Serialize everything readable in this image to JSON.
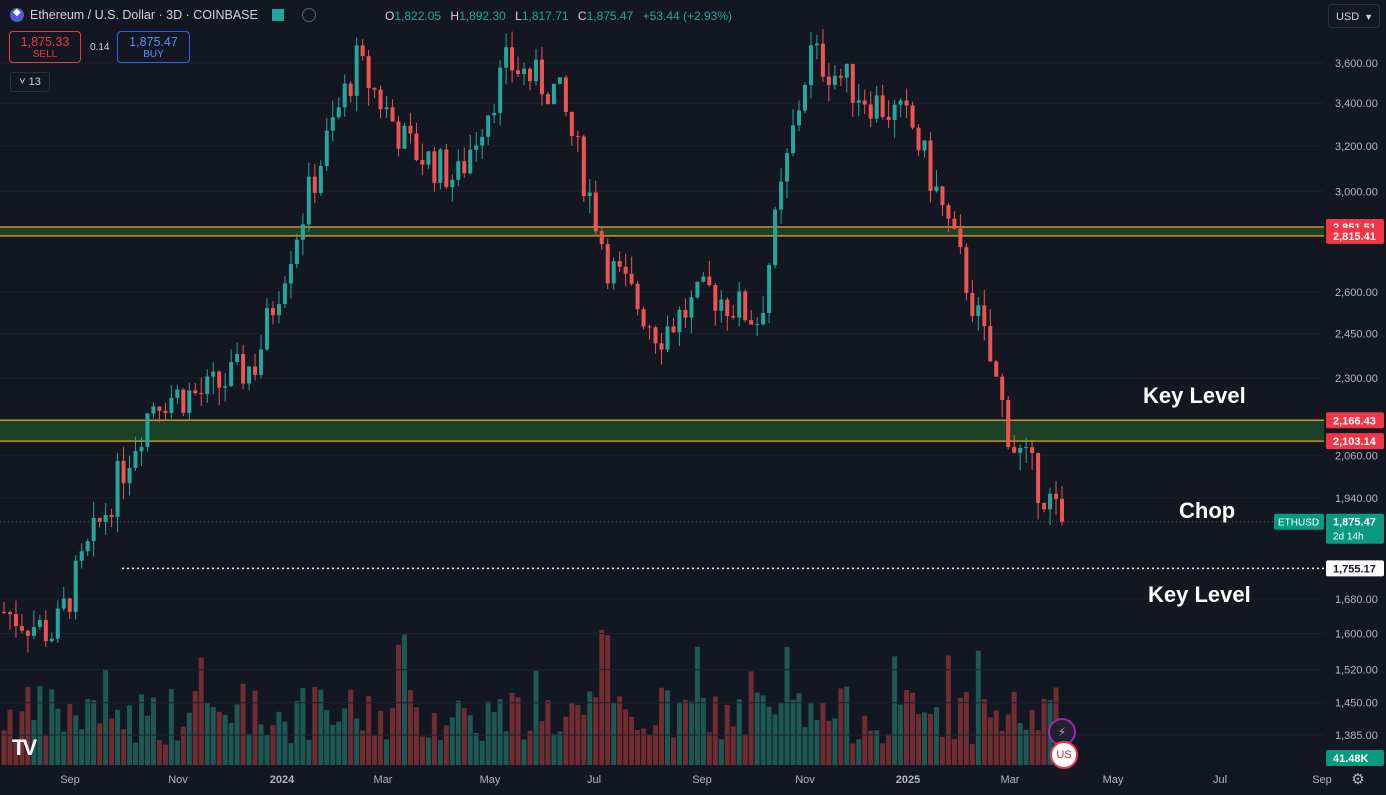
{
  "header": {
    "title": "Ethereum / U.S. Dollar · 3D · COINBASE",
    "ohlc": {
      "o_label": "O",
      "o": "1,822.05",
      "h_label": "H",
      "h": "1,892.30",
      "l_label": "L",
      "l": "1,817.71",
      "c_label": "C",
      "c": "1,875.47",
      "change": "+53.44 (+2.93%)"
    }
  },
  "trade": {
    "sell_price": "1,875.33",
    "sell_label": "SELL",
    "spread": "0.14",
    "buy_price": "1,875.47",
    "buy_label": "BUY"
  },
  "indicator_count": "13",
  "currency": "USD",
  "annotations": {
    "key_level_upper": "Key Level",
    "chop": "Chop",
    "key_level_lower": "Key Level"
  },
  "price_tags": {
    "r1": "2,851.51",
    "r2": "2,815.41",
    "s1": "2,166.43",
    "s2": "2,103.14",
    "symbol": "ETHUSD",
    "last": "1,875.47",
    "countdown": "2d 14h",
    "low_line": "1,755.17",
    "volume": "41.48K"
  },
  "colors": {
    "bg": "#131722",
    "up": "#26a69a",
    "down": "#ef5350",
    "zone_fill": "#1d4a28",
    "zone_line": "#c8922f",
    "tag_red": "#f23645",
    "tag_green": "#089981"
  },
  "icons": [
    "ethereum-logo-icon",
    "flag-icon",
    "eye-icon",
    "gear-icon",
    "tradingview-logo-icon",
    "event-icon",
    "us-flag-icon"
  ],
  "chart_data": {
    "type": "candlestick",
    "title": "Ethereum / U.S. Dollar · 3D · COINBASE",
    "y_axis": {
      "ticks": [
        3600,
        3400,
        3200,
        3000,
        2600,
        2450,
        2300,
        2060,
        1940,
        1680,
        1600,
        1520,
        1450,
        1385
      ],
      "tick_labels": [
        "3,600.00",
        "3,400.00",
        "3,200.00",
        "3,000.00",
        "2,600.00",
        "2,450.00",
        "2,300.00",
        "2,060.00",
        "1,940.00",
        "1,680.00",
        "1,600.00",
        "1,520.00",
        "1,450.00",
        "1,385.00"
      ],
      "scale": "log",
      "range": [
        1340,
        3800
      ]
    },
    "x_axis": {
      "labels": [
        "Sep",
        "Nov",
        "2024",
        "Mar",
        "May",
        "Jul",
        "Sep",
        "Nov",
        "2025",
        "Mar",
        "May",
        "Jul",
        "Sep"
      ]
    },
    "horizontal_levels": [
      2851.51,
      2815.41,
      2166.43,
      2103.14,
      1755.17
    ],
    "zones": [
      {
        "from": 2815.41,
        "to": 2851.51
      },
      {
        "from": 2103.14,
        "to": 2166.43
      }
    ],
    "last_price": 1875.47,
    "anchors": [
      [
        "Sep",
        1650
      ],
      [
        "Oct",
        1600
      ],
      [
        "Nov",
        1900
      ],
      [
        "Dec",
        2240
      ],
      [
        "2024",
        2250
      ],
      [
        "Jan",
        2350
      ],
      [
        "Feb",
        2950
      ],
      [
        "Mar",
        3600
      ],
      [
        "Apr",
        3200
      ],
      [
        "May",
        3050
      ],
      [
        "Jun",
        3600
      ],
      [
        "Jul",
        3450
      ],
      [
        "Aug",
        2700
      ],
      [
        "Sep",
        2450
      ],
      [
        "Oct",
        2600
      ],
      [
        "Nov",
        2500
      ],
      [
        "Dec",
        3650
      ],
      [
        "2025",
        3450
      ],
      [
        "Jan",
        3300
      ],
      [
        "Feb",
        2700
      ],
      [
        "Mar",
        2100
      ],
      [
        "Apr",
        1875.47
      ]
    ],
    "volume_last": "41.48K",
    "grid": true,
    "legend": "top-left"
  }
}
